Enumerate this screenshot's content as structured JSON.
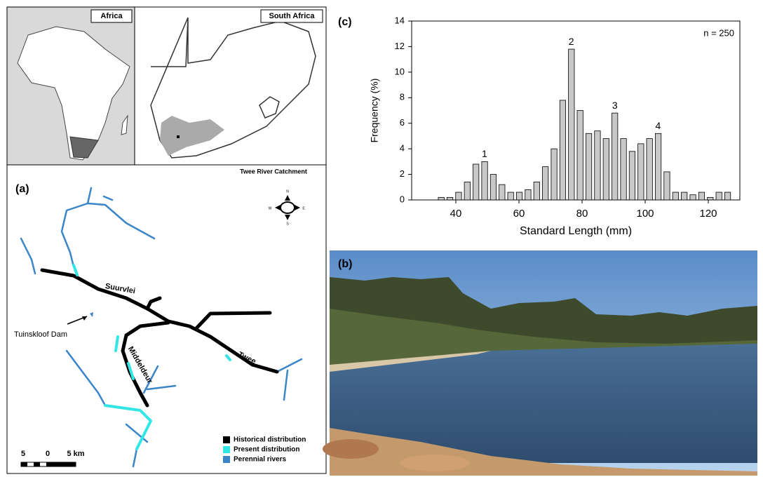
{
  "figure": {
    "inset_africa": "Africa",
    "inset_south_africa": "South Africa",
    "map": {
      "panel": "(a)",
      "title": "Twee River Catchment",
      "labels": [
        "Suurvlei",
        "Tuinskloof Dam",
        "Middeldeur",
        "Twee"
      ],
      "compass": [
        "N",
        "E",
        "S",
        "W"
      ],
      "scale": [
        "5",
        "0",
        "5 km"
      ],
      "legend": [
        {
          "name": "Historical distribution",
          "color": "#000000"
        },
        {
          "name": "Present distribution",
          "color": "#33e6e6"
        },
        {
          "name": "Perennial rivers",
          "color": "#3a86c8"
        }
      ]
    },
    "photo": {
      "panel": "(b)"
    }
  },
  "chart_data": {
    "type": "histogram",
    "panel": "(c)",
    "note": "n = 250",
    "xlabel": "Standard Length (mm)",
    "ylabel": "Frequency (%)",
    "bins": [
      34,
      36.75,
      39.5,
      42.25,
      45,
      47.75,
      50.5,
      53.25,
      56,
      58.75,
      61.5,
      64.25,
      67,
      69.75,
      72.5,
      75.25,
      78,
      80.75,
      83.5,
      86.25,
      89,
      91.75,
      94.5,
      97.25,
      100,
      102.75,
      105.5,
      108.25,
      111,
      113.75,
      116.5,
      119.25,
      122,
      124.75,
      127.5
    ],
    "counts": [
      0.2,
      0.2,
      0.6,
      1.4,
      2.8,
      3.0,
      2.0,
      1.2,
      0.6,
      0.6,
      0.8,
      1.4,
      2.6,
      4.0,
      7.8,
      11.8,
      7.0,
      5.2,
      5.4,
      4.8,
      6.8,
      4.8,
      3.8,
      4.4,
      4.8,
      5.2,
      2.2,
      0.6,
      0.6,
      0.4,
      0.6,
      0.2,
      0.6,
      0.6
    ],
    "color": "#c8c8c8",
    "annotations": [
      {
        "text": "1",
        "x": 49.1,
        "y": 3.0
      },
      {
        "text": "2",
        "x": 76.6,
        "y": 11.8
      },
      {
        "text": "3",
        "x": 90.4,
        "y": 6.8
      },
      {
        "text": "4",
        "x": 104.1,
        "y": 5.2
      }
    ],
    "xlim": [
      26,
      130
    ],
    "xticks": [
      40,
      60,
      80,
      100,
      120
    ],
    "ylim": [
      0,
      14
    ],
    "yticks": [
      0,
      2,
      4,
      6,
      8,
      10,
      12,
      14
    ]
  }
}
